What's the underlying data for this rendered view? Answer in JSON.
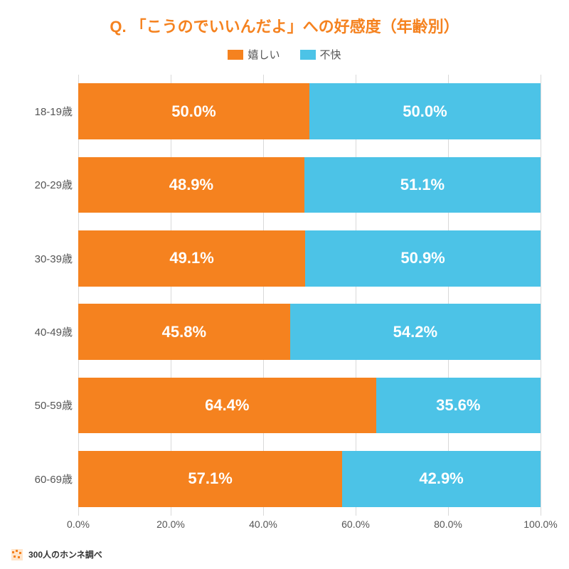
{
  "chart": {
    "type": "stacked-horizontal-bar",
    "title": "Q. 「こうのでいいんだよ」への好感度（年齢別）",
    "title_color": "#f5821f",
    "title_fontsize": 22,
    "background_color": "#ffffff",
    "grid_color": "#d9d9d9",
    "axis_text_color": "#555555",
    "value_label_color": "#ffffff",
    "value_label_fontsize": 22,
    "category_label_fontsize": 15,
    "legend": {
      "items": [
        {
          "label": "嬉しい",
          "color": "#f5821f"
        },
        {
          "label": "不快",
          "color": "#4cc3e7"
        }
      ],
      "fontsize": 15,
      "text_color": "#555555"
    },
    "xaxis": {
      "min": 0,
      "max": 100,
      "ticks": [
        {
          "pos": 0,
          "label": "0.0%"
        },
        {
          "pos": 20,
          "label": "20.0%"
        },
        {
          "pos": 40,
          "label": "40.0%"
        },
        {
          "pos": 60,
          "label": "60.0%"
        },
        {
          "pos": 80,
          "label": "80.0%"
        },
        {
          "pos": 100,
          "label": "100.0%"
        }
      ]
    },
    "rows": [
      {
        "label": "18-19歳",
        "segments": [
          {
            "value": 50.0,
            "text": "50.0%"
          },
          {
            "value": 50.0,
            "text": "50.0%"
          }
        ]
      },
      {
        "label": "20-29歳",
        "segments": [
          {
            "value": 48.9,
            "text": "48.9%"
          },
          {
            "value": 51.1,
            "text": "51.1%"
          }
        ]
      },
      {
        "label": "30-39歳",
        "segments": [
          {
            "value": 49.1,
            "text": "49.1%"
          },
          {
            "value": 50.9,
            "text": "50.9%"
          }
        ]
      },
      {
        "label": "40-49歳",
        "segments": [
          {
            "value": 45.8,
            "text": "45.8%"
          },
          {
            "value": 54.2,
            "text": "54.2%"
          }
        ]
      },
      {
        "label": "50-59歳",
        "segments": [
          {
            "value": 64.4,
            "text": "64.4%"
          },
          {
            "value": 35.6,
            "text": "35.6%"
          }
        ]
      },
      {
        "label": "60-69歳",
        "segments": [
          {
            "value": 57.1,
            "text": "57.1%"
          },
          {
            "value": 42.9,
            "text": "42.9%"
          }
        ]
      }
    ]
  },
  "footer": {
    "text": "300人のホンネ調べ",
    "icon_fg": "#f5821f",
    "icon_bg": "#ffe6cc",
    "text_color": "#333333",
    "fontsize": 12
  }
}
